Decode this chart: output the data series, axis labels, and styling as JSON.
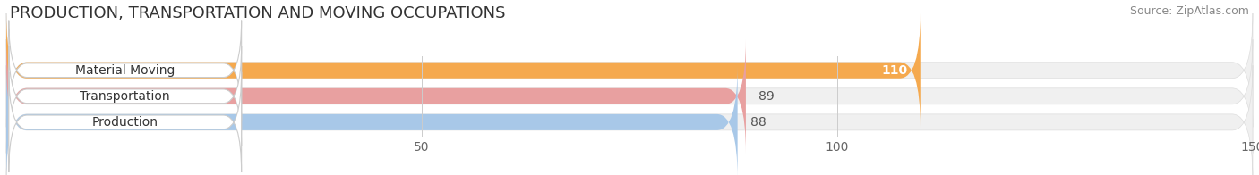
{
  "title": "PRODUCTION, TRANSPORTATION AND MOVING OCCUPATIONS",
  "source": "Source: ZipAtlas.com",
  "categories": [
    "Material Moving",
    "Transportation",
    "Production"
  ],
  "values": [
    110,
    89,
    88
  ],
  "bar_colors": [
    "#F5A94E",
    "#E8A0A0",
    "#A8C8E8"
  ],
  "value_colors": [
    "#ffffff",
    "#555555",
    "#555555"
  ],
  "xlim": [
    0,
    150
  ],
  "xticks": [
    50,
    100,
    150
  ],
  "bar_height": 0.62,
  "background_color": "#ffffff",
  "bar_bg_color": "#f0f0f0",
  "title_fontsize": 13,
  "source_fontsize": 9,
  "label_fontsize": 10,
  "value_fontsize": 10,
  "tick_fontsize": 10
}
